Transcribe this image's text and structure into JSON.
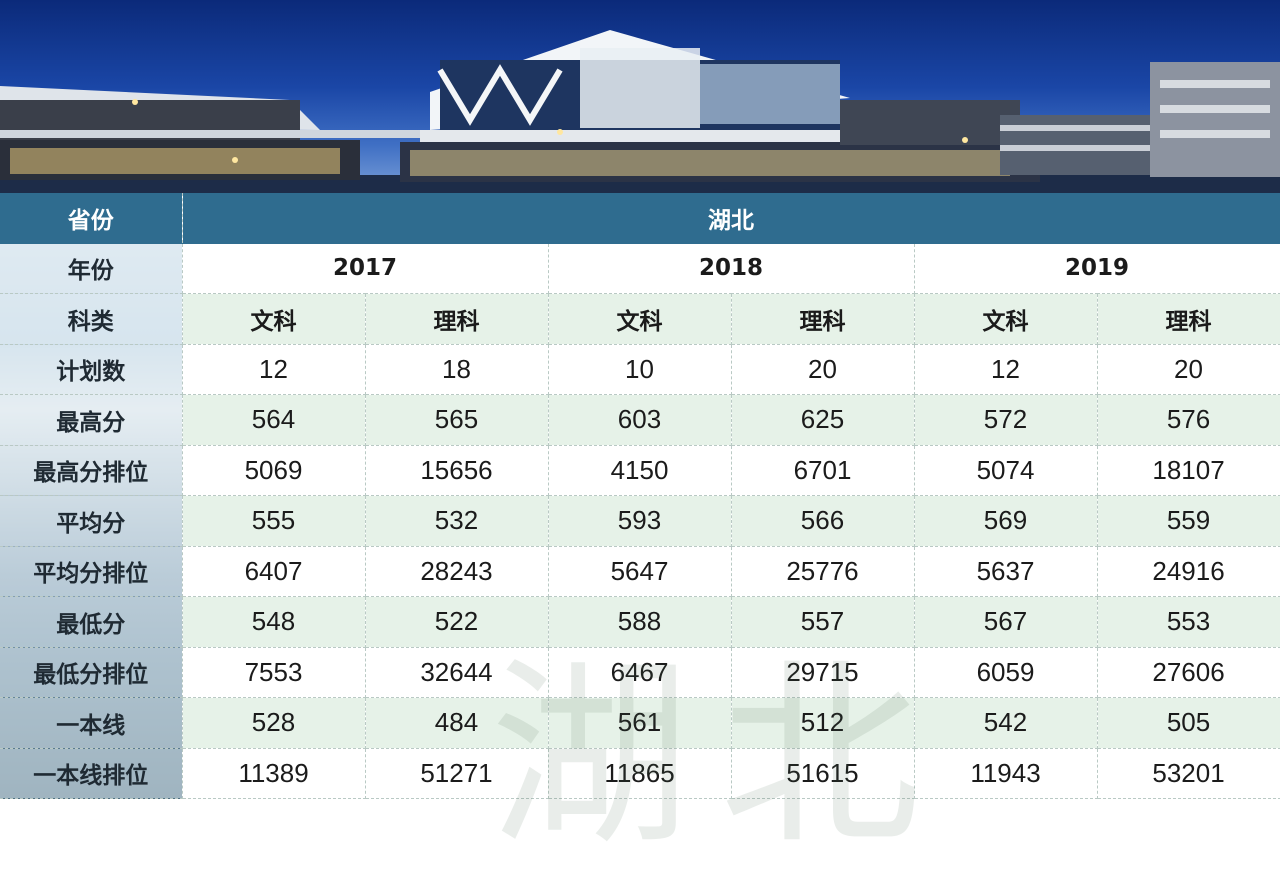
{
  "table": {
    "header_province": {
      "label": "省份",
      "value": "湖北"
    },
    "header_year": {
      "label": "年份",
      "years": [
        "2017",
        "2018",
        "2019"
      ]
    },
    "header_subject": {
      "label": "科类",
      "values": [
        "文科",
        "理科",
        "文科",
        "理科",
        "文科",
        "理科"
      ]
    },
    "rows": [
      {
        "label": "计划数",
        "values": [
          "12",
          "18",
          "10",
          "20",
          "12",
          "20"
        ]
      },
      {
        "label": "最高分",
        "values": [
          "564",
          "565",
          "603",
          "625",
          "572",
          "576"
        ]
      },
      {
        "label": "最高分排位",
        "values": [
          "5069",
          "15656",
          "4150",
          "6701",
          "5074",
          "18107"
        ]
      },
      {
        "label": "平均分",
        "values": [
          "555",
          "532",
          "593",
          "566",
          "569",
          "559"
        ]
      },
      {
        "label": "平均分排位",
        "values": [
          "6407",
          "28243",
          "5647",
          "25776",
          "5637",
          "24916"
        ]
      },
      {
        "label": "最低分",
        "values": [
          "548",
          "522",
          "588",
          "557",
          "567",
          "553"
        ]
      },
      {
        "label": "最低分排位",
        "values": [
          "7553",
          "32644",
          "6467",
          "29715",
          "6059",
          "27606"
        ]
      },
      {
        "label": "一本线",
        "values": [
          "528",
          "484",
          "561",
          "512",
          "542",
          "505"
        ]
      },
      {
        "label": "一本线排位",
        "values": [
          "11389",
          "51271",
          "11865",
          "51615",
          "11943",
          "53201"
        ]
      }
    ]
  },
  "watermark_text": "湖北",
  "colors": {
    "header_bg": "#2f6c8f",
    "alt_row": "#dfeee2",
    "sky": "#1a46a6"
  }
}
